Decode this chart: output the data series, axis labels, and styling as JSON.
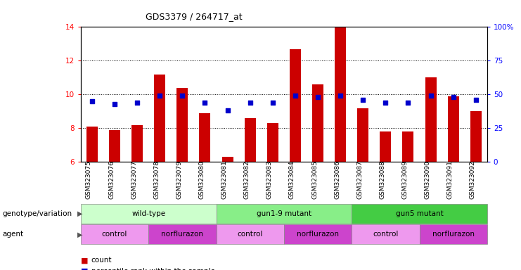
{
  "title": "GDS3379 / 264717_at",
  "samples": [
    "GSM323075",
    "GSM323076",
    "GSM323077",
    "GSM323078",
    "GSM323079",
    "GSM323080",
    "GSM323081",
    "GSM323082",
    "GSM323083",
    "GSM323084",
    "GSM323085",
    "GSM323086",
    "GSM323087",
    "GSM323088",
    "GSM323089",
    "GSM323090",
    "GSM323091",
    "GSM323092"
  ],
  "counts": [
    8.1,
    7.9,
    8.2,
    11.2,
    10.4,
    8.9,
    6.3,
    8.6,
    8.3,
    12.7,
    10.6,
    14.0,
    9.2,
    7.8,
    7.8,
    11.0,
    9.9,
    9.0
  ],
  "percentile_vals": [
    45,
    43,
    44,
    49,
    49,
    44,
    38,
    44,
    44,
    49,
    48,
    49,
    46,
    44,
    44,
    49,
    48,
    46
  ],
  "ylim_left": [
    6,
    14
  ],
  "yticks_left": [
    6,
    8,
    10,
    12,
    14
  ],
  "ylim_right": [
    0,
    100
  ],
  "yticks_right": [
    0,
    25,
    50,
    75,
    100
  ],
  "bar_color": "#cc0000",
  "dot_color": "#0000cc",
  "bar_width": 0.5,
  "genotype_groups": [
    {
      "label": "wild-type",
      "start": 0,
      "end": 6,
      "color": "#ccffcc"
    },
    {
      "label": "gun1-9 mutant",
      "start": 6,
      "end": 12,
      "color": "#88ee88"
    },
    {
      "label": "gun5 mutant",
      "start": 12,
      "end": 18,
      "color": "#44cc44"
    }
  ],
  "agent_groups": [
    {
      "label": "control",
      "start": 0,
      "end": 3,
      "color": "#ee99ee"
    },
    {
      "label": "norflurazon",
      "start": 3,
      "end": 6,
      "color": "#cc44cc"
    },
    {
      "label": "control",
      "start": 6,
      "end": 9,
      "color": "#ee99ee"
    },
    {
      "label": "norflurazon",
      "start": 9,
      "end": 12,
      "color": "#cc44cc"
    },
    {
      "label": "control",
      "start": 12,
      "end": 15,
      "color": "#ee99ee"
    },
    {
      "label": "norflurazon",
      "start": 15,
      "end": 18,
      "color": "#cc44cc"
    }
  ],
  "genotype_label": "genotype/variation",
  "agent_label": "agent",
  "legend_count_color": "#cc0000",
  "legend_rank_color": "#0000cc",
  "grid_ticks": [
    8,
    10,
    12
  ],
  "dot_size": 18
}
